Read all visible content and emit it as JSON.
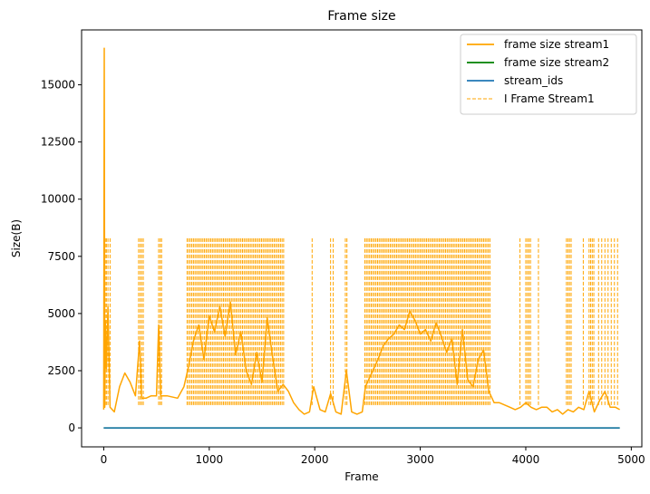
{
  "chart_data": {
    "type": "line",
    "title": "Frame size",
    "xlabel": "Frame",
    "ylabel": "Size(B)",
    "xlim": [
      -210,
      5100
    ],
    "ylim": [
      -830,
      17400
    ],
    "xticks": [
      0,
      1000,
      2000,
      3000,
      4000,
      5000
    ],
    "yticks": [
      0,
      2500,
      5000,
      7500,
      10000,
      12500,
      15000
    ],
    "grid": false,
    "legend_position": "top-right",
    "series": [
      {
        "name": "frame size stream1",
        "color": "#ffa500",
        "style": "solid",
        "x": [
          0,
          5,
          10,
          15,
          25,
          40,
          60,
          80,
          100,
          150,
          200,
          250,
          300,
          340,
          360,
          400,
          450,
          500,
          520,
          540,
          600,
          700,
          760,
          800,
          850,
          900,
          950,
          1000,
          1050,
          1100,
          1150,
          1200,
          1250,
          1300,
          1350,
          1400,
          1450,
          1500,
          1550,
          1600,
          1650,
          1700,
          1750,
          1800,
          1850,
          1900,
          1950,
          1990,
          2050,
          2100,
          2150,
          2200,
          2250,
          2300,
          2350,
          2400,
          2450,
          2480,
          2550,
          2600,
          2650,
          2700,
          2750,
          2800,
          2850,
          2900,
          2950,
          3000,
          3050,
          3100,
          3150,
          3200,
          3250,
          3300,
          3350,
          3400,
          3450,
          3500,
          3550,
          3600,
          3650,
          3700,
          3750,
          3800,
          3850,
          3900,
          3950,
          4000,
          4050,
          4100,
          4150,
          4200,
          4250,
          4300,
          4350,
          4400,
          4450,
          4500,
          4550,
          4600,
          4650,
          4700,
          4750,
          4800,
          4850,
          4890
        ],
        "y": [
          800,
          16600,
          900,
          4700,
          2600,
          5300,
          900,
          800,
          700,
          1800,
          2400,
          2000,
          1400,
          3800,
          1300,
          1300,
          1400,
          1400,
          4500,
          1400,
          1400,
          1300,
          1800,
          2600,
          3800,
          4500,
          3000,
          4900,
          4200,
          5300,
          4000,
          5500,
          3200,
          4200,
          2500,
          1900,
          3300,
          2000,
          4800,
          3100,
          1600,
          1900,
          1600,
          1100,
          800,
          600,
          700,
          1800,
          800,
          700,
          1500,
          700,
          600,
          2500,
          700,
          600,
          700,
          1800,
          2500,
          3000,
          3600,
          3900,
          4100,
          4500,
          4300,
          5100,
          4700,
          4100,
          4300,
          3800,
          4600,
          4000,
          3300,
          3900,
          1900,
          4300,
          2100,
          1800,
          3000,
          3400,
          1600,
          1100,
          1100,
          1000,
          900,
          800,
          900,
          1100,
          900,
          800,
          900,
          900,
          700,
          800,
          600,
          800,
          700,
          900,
          800,
          1600,
          700,
          1200,
          1600,
          900,
          900,
          800
        ]
      },
      {
        "name": "frame size stream2",
        "color": "#008000",
        "style": "solid",
        "x": [
          0,
          4890
        ],
        "y": [
          0,
          0
        ]
      },
      {
        "name": "stream_ids",
        "color": "#1f77b4",
        "style": "solid",
        "x": [
          0,
          4890
        ],
        "y": [
          0,
          0
        ]
      },
      {
        "name": "I Frame Stream1",
        "color": "#ffa500",
        "style": "dashed",
        "vline_ymin": 1000,
        "vline_ymax": 8300,
        "x": [
          15,
          25,
          40,
          60,
          330,
          345,
          360,
          375,
          520,
          535,
          548,
          790,
          805,
          820,
          835,
          850,
          865,
          880,
          895,
          910,
          925,
          940,
          955,
          970,
          985,
          1000,
          1015,
          1030,
          1045,
          1060,
          1075,
          1090,
          1105,
          1120,
          1135,
          1150,
          1165,
          1180,
          1195,
          1210,
          1225,
          1240,
          1255,
          1270,
          1285,
          1300,
          1315,
          1330,
          1345,
          1360,
          1375,
          1390,
          1405,
          1420,
          1435,
          1450,
          1465,
          1480,
          1495,
          1510,
          1525,
          1540,
          1555,
          1570,
          1585,
          1600,
          1615,
          1630,
          1645,
          1660,
          1675,
          1690,
          1705,
          1975,
          2150,
          2175,
          2290,
          2305,
          2475,
          2490,
          2505,
          2520,
          2535,
          2550,
          2565,
          2580,
          2595,
          2610,
          2625,
          2640,
          2655,
          2670,
          2685,
          2700,
          2715,
          2730,
          2745,
          2760,
          2775,
          2790,
          2805,
          2820,
          2835,
          2850,
          2865,
          2880,
          2895,
          2910,
          2925,
          2940,
          2955,
          2970,
          2985,
          3000,
          3015,
          3030,
          3045,
          3060,
          3075,
          3090,
          3105,
          3120,
          3135,
          3150,
          3165,
          3180,
          3195,
          3210,
          3225,
          3240,
          3255,
          3270,
          3285,
          3300,
          3315,
          3330,
          3345,
          3360,
          3375,
          3390,
          3405,
          3420,
          3435,
          3450,
          3465,
          3480,
          3495,
          3510,
          3525,
          3540,
          3555,
          3570,
          3585,
          3600,
          3615,
          3630,
          3645,
          3660,
          3945,
          4000,
          4015,
          4030,
          4045,
          4120,
          4385,
          4400,
          4415,
          4430,
          4545,
          4600,
          4615,
          4630,
          4645,
          4690,
          4720,
          4750,
          4780,
          4810,
          4840,
          4870
        ]
      }
    ]
  }
}
